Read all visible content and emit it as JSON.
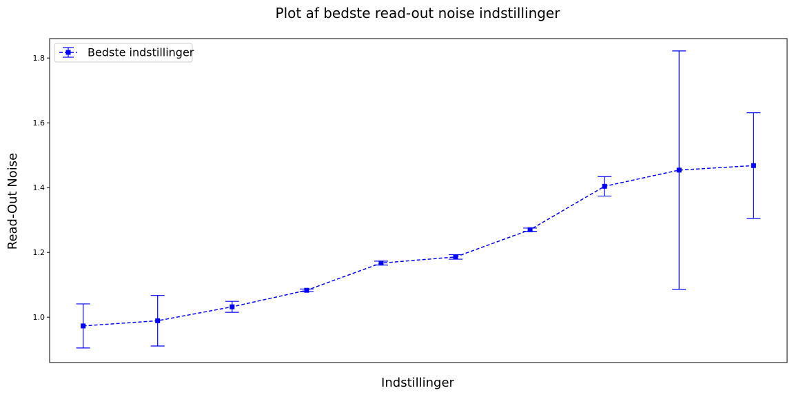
{
  "chart_data": {
    "type": "line",
    "title": "Plot af bedste read-out noise indstillinger",
    "xlabel": "Indstillinger",
    "ylabel": "Read-Out Noise",
    "x": [
      1,
      2,
      3,
      4,
      5,
      6,
      7,
      8,
      9,
      10
    ],
    "xlim": [
      0.55,
      10.45
    ],
    "ylim": [
      0.86,
      1.86
    ],
    "yticks": [
      1.0,
      1.2,
      1.4,
      1.6,
      1.8
    ],
    "ytick_labels": [
      "1.0",
      "1.2",
      "1.4",
      "1.6",
      "1.8"
    ],
    "xticks": [],
    "grid": false,
    "legend_position": "top-left",
    "series": [
      {
        "name": "Bedste indstillinger",
        "color": "#0000ff",
        "linestyle": "dashed",
        "marker": "square",
        "values": [
          0.973,
          0.989,
          1.032,
          1.083,
          1.167,
          1.186,
          1.27,
          1.404,
          1.454,
          1.468
        ],
        "errors": [
          0.068,
          0.078,
          0.017,
          0.004,
          0.006,
          0.007,
          0.005,
          0.03,
          0.368,
          0.163
        ]
      }
    ]
  }
}
